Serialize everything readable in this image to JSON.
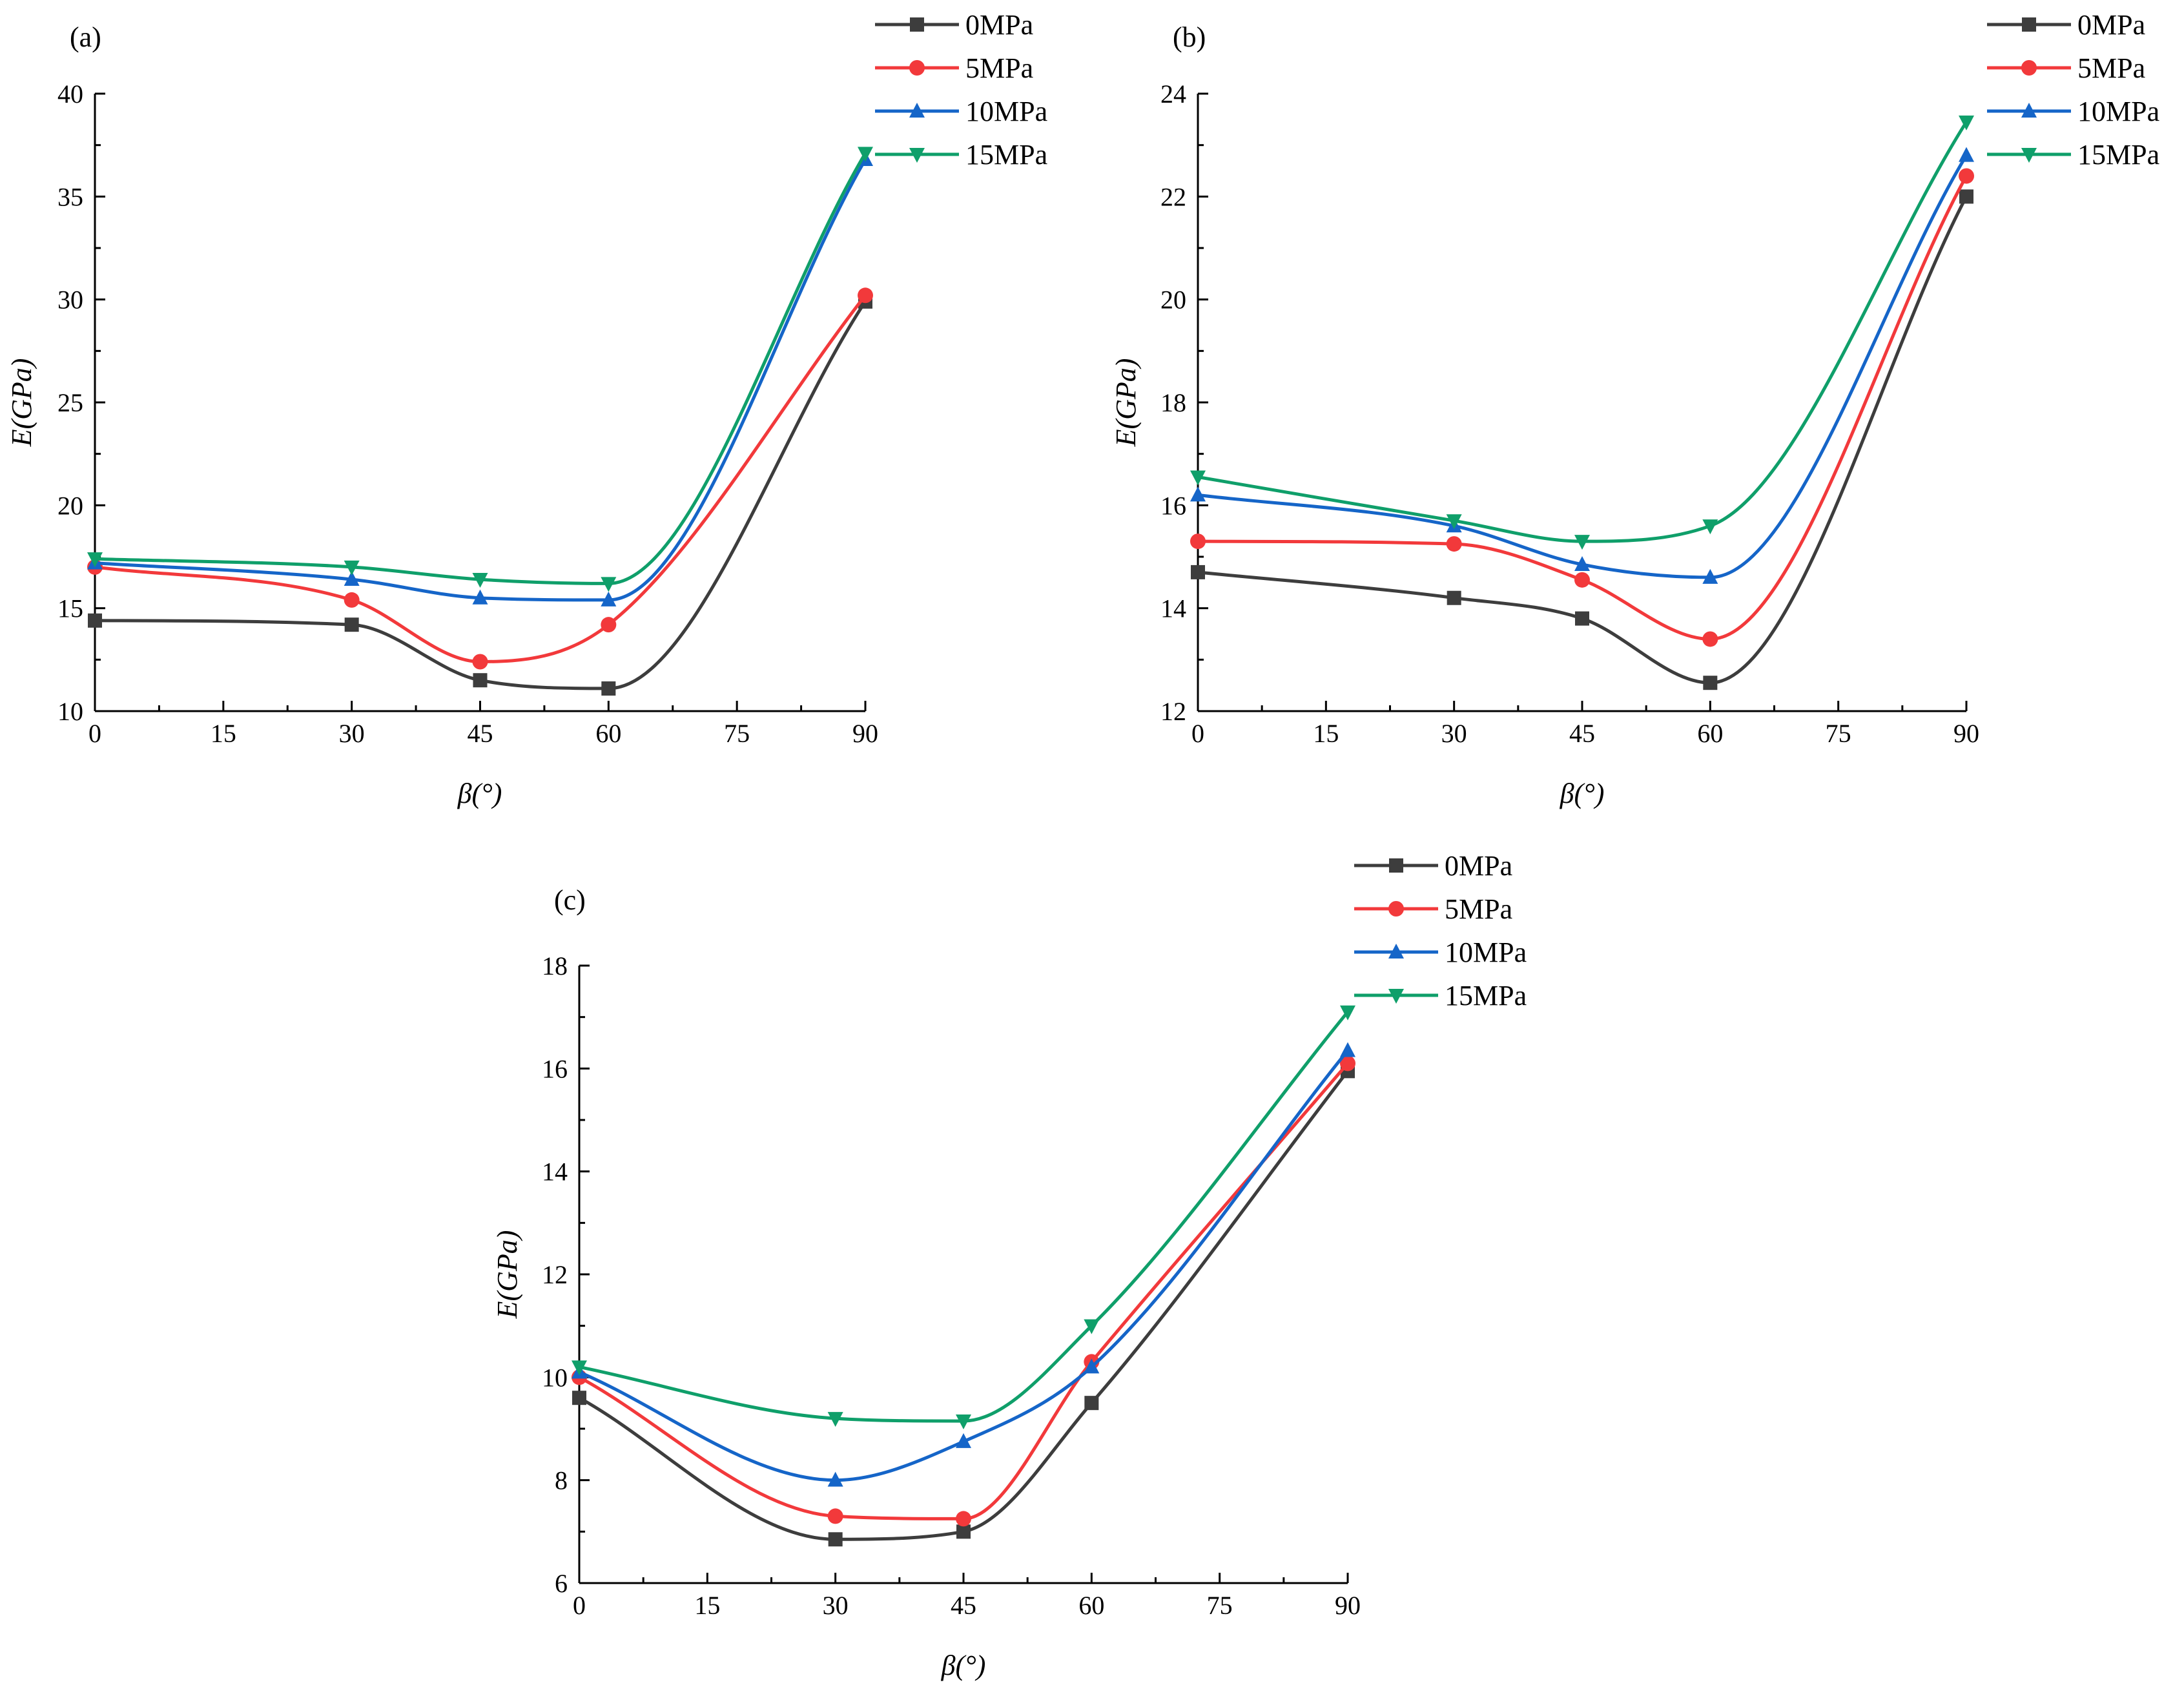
{
  "legend_entries": [
    "0MPa",
    "5MPa",
    "10MPa",
    "15MPa"
  ],
  "series_colors": [
    "#3d3d3d",
    "#f2393b",
    "#1565c8",
    "#0f9f6a"
  ],
  "series_markers": [
    "square",
    "circle",
    "triangle-up",
    "triangle-down"
  ],
  "chart_data": [
    {
      "type": "line",
      "panel_label": "(a)",
      "xlabel": "β(°)",
      "ylabel": "E(GPa)",
      "xlim": [
        0,
        90
      ],
      "ylim": [
        10,
        40
      ],
      "xticks": [
        0,
        15,
        30,
        45,
        60,
        75,
        90
      ],
      "yticks": [
        10,
        15,
        20,
        25,
        30,
        35,
        40
      ],
      "legend_position": "top-right",
      "grid": false,
      "x": [
        0,
        30,
        45,
        60,
        90
      ],
      "series": [
        {
          "name": "0MPa",
          "values": [
            14.4,
            14.2,
            11.5,
            11.1,
            29.9
          ]
        },
        {
          "name": "5MPa",
          "values": [
            17.0,
            15.4,
            12.4,
            14.2,
            30.2
          ]
        },
        {
          "name": "10MPa",
          "values": [
            17.2,
            16.4,
            15.5,
            15.4,
            36.8
          ]
        },
        {
          "name": "15MPa",
          "values": [
            17.4,
            17.0,
            16.4,
            16.2,
            37.1
          ]
        }
      ]
    },
    {
      "type": "line",
      "panel_label": "(b)",
      "xlabel": "β(°)",
      "ylabel": "E(GPa)",
      "xlim": [
        0,
        90
      ],
      "ylim": [
        12,
        24
      ],
      "xticks": [
        0,
        15,
        30,
        45,
        60,
        75,
        90
      ],
      "yticks": [
        12,
        14,
        16,
        18,
        20,
        22,
        24
      ],
      "legend_position": "top-right",
      "grid": false,
      "x": [
        0,
        30,
        45,
        60,
        90
      ],
      "series": [
        {
          "name": "0MPa",
          "values": [
            14.7,
            14.2,
            13.8,
            12.55,
            22.0
          ]
        },
        {
          "name": "5MPa",
          "values": [
            15.3,
            15.25,
            14.55,
            13.4,
            22.4
          ]
        },
        {
          "name": "10MPa",
          "values": [
            16.2,
            15.6,
            14.85,
            14.6,
            22.8
          ]
        },
        {
          "name": "15MPa",
          "values": [
            16.55,
            15.7,
            15.3,
            15.6,
            23.45
          ]
        }
      ]
    },
    {
      "type": "line",
      "panel_label": "(c)",
      "xlabel": "β(°)",
      "ylabel": "E(GPa)",
      "xlim": [
        0,
        90
      ],
      "ylim": [
        6,
        18
      ],
      "xticks": [
        0,
        15,
        30,
        45,
        60,
        75,
        90
      ],
      "yticks": [
        6,
        8,
        10,
        12,
        14,
        16,
        18
      ],
      "legend_position": "top-right",
      "grid": false,
      "x": [
        0,
        30,
        45,
        60,
        90
      ],
      "series": [
        {
          "name": "0MPa",
          "values": [
            9.6,
            6.85,
            7.0,
            9.5,
            15.95
          ]
        },
        {
          "name": "5MPa",
          "values": [
            10.0,
            7.3,
            7.25,
            10.3,
            16.1
          ]
        },
        {
          "name": "10MPa",
          "values": [
            10.1,
            8.0,
            8.75,
            10.2,
            16.35
          ]
        },
        {
          "name": "15MPa",
          "values": [
            10.2,
            9.2,
            9.15,
            11.0,
            17.1
          ]
        }
      ]
    }
  ]
}
